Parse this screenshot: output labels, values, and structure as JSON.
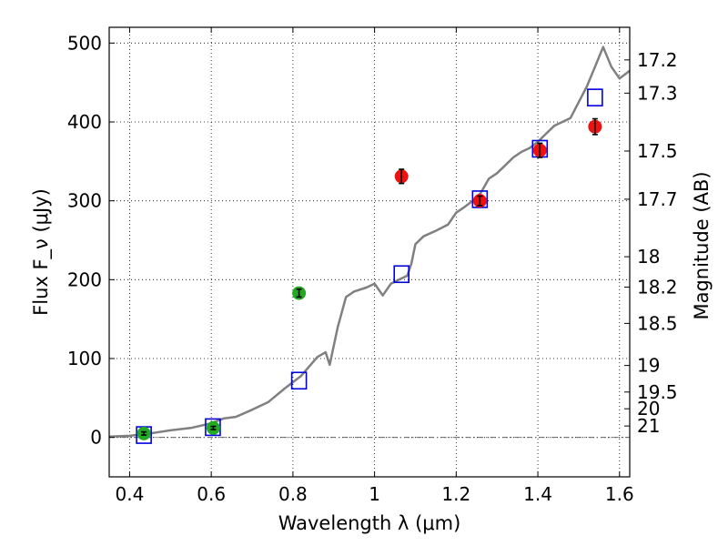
{
  "chart_data": {
    "type": "scatter",
    "xlabel": "Wavelength λ (μm)",
    "ylabel": "Flux F_ν (μJy)",
    "y2label": "Magnitude (AB)",
    "xlim": [
      0.35,
      1.625
    ],
    "ylim": [
      -50,
      520
    ],
    "x_ticks": [
      "0.4",
      "0.6",
      "0.8",
      "1",
      "1.2",
      "1.4",
      "1.6"
    ],
    "y_ticks": [
      "0",
      "100",
      "200",
      "300",
      "400",
      "500"
    ],
    "mag_ticks": [
      "17.2",
      "17.3",
      "17.5",
      "17.7",
      "18",
      "18.2",
      "18.5",
      "19",
      "19.5",
      "20",
      "21"
    ],
    "grid": true,
    "series": [
      {
        "kind": "line",
        "color": "#808080",
        "x": [
          0.35,
          0.4,
          0.45,
          0.5,
          0.55,
          0.6,
          0.63,
          0.66,
          0.7,
          0.74,
          0.78,
          0.8,
          0.82,
          0.84,
          0.86,
          0.88,
          0.89,
          0.91,
          0.93,
          0.95,
          0.98,
          1.0,
          1.02,
          1.04,
          1.06,
          1.08,
          1.09,
          1.1,
          1.12,
          1.15,
          1.18,
          1.2,
          1.22,
          1.24,
          1.26,
          1.28,
          1.3,
          1.32,
          1.34,
          1.36,
          1.38,
          1.4,
          1.42,
          1.44,
          1.46,
          1.48,
          1.5,
          1.52,
          1.54,
          1.56,
          1.58,
          1.6,
          1.625
        ],
        "y": [
          1,
          2,
          5,
          9,
          12,
          18,
          24,
          26,
          35,
          45,
          62,
          70,
          78,
          90,
          102,
          108,
          92,
          140,
          178,
          185,
          190,
          195,
          180,
          195,
          200,
          205,
          220,
          245,
          255,
          262,
          270,
          285,
          292,
          300,
          310,
          328,
          335,
          345,
          355,
          362,
          367,
          375,
          385,
          395,
          400,
          405,
          425,
          445,
          470,
          495,
          470,
          455,
          465
        ]
      },
      {
        "kind": "model-squares",
        "color": "#0000dd",
        "x": [
          0.435,
          0.604,
          0.815,
          1.066,
          1.258,
          1.405,
          1.54
        ],
        "y": [
          3,
          13,
          72,
          207,
          302,
          366,
          431
        ]
      },
      {
        "kind": "optical-points",
        "color": "#22aa22",
        "x": [
          0.435,
          0.605,
          0.815
        ],
        "y": [
          5,
          12,
          183
        ],
        "err": [
          2,
          2,
          5
        ]
      },
      {
        "kind": "infrared-points",
        "color": "#ee1111",
        "x": [
          1.066,
          1.258,
          1.405,
          1.54
        ],
        "y": [
          331,
          300,
          364,
          394
        ],
        "err": [
          9,
          6,
          9,
          10
        ]
      }
    ]
  }
}
